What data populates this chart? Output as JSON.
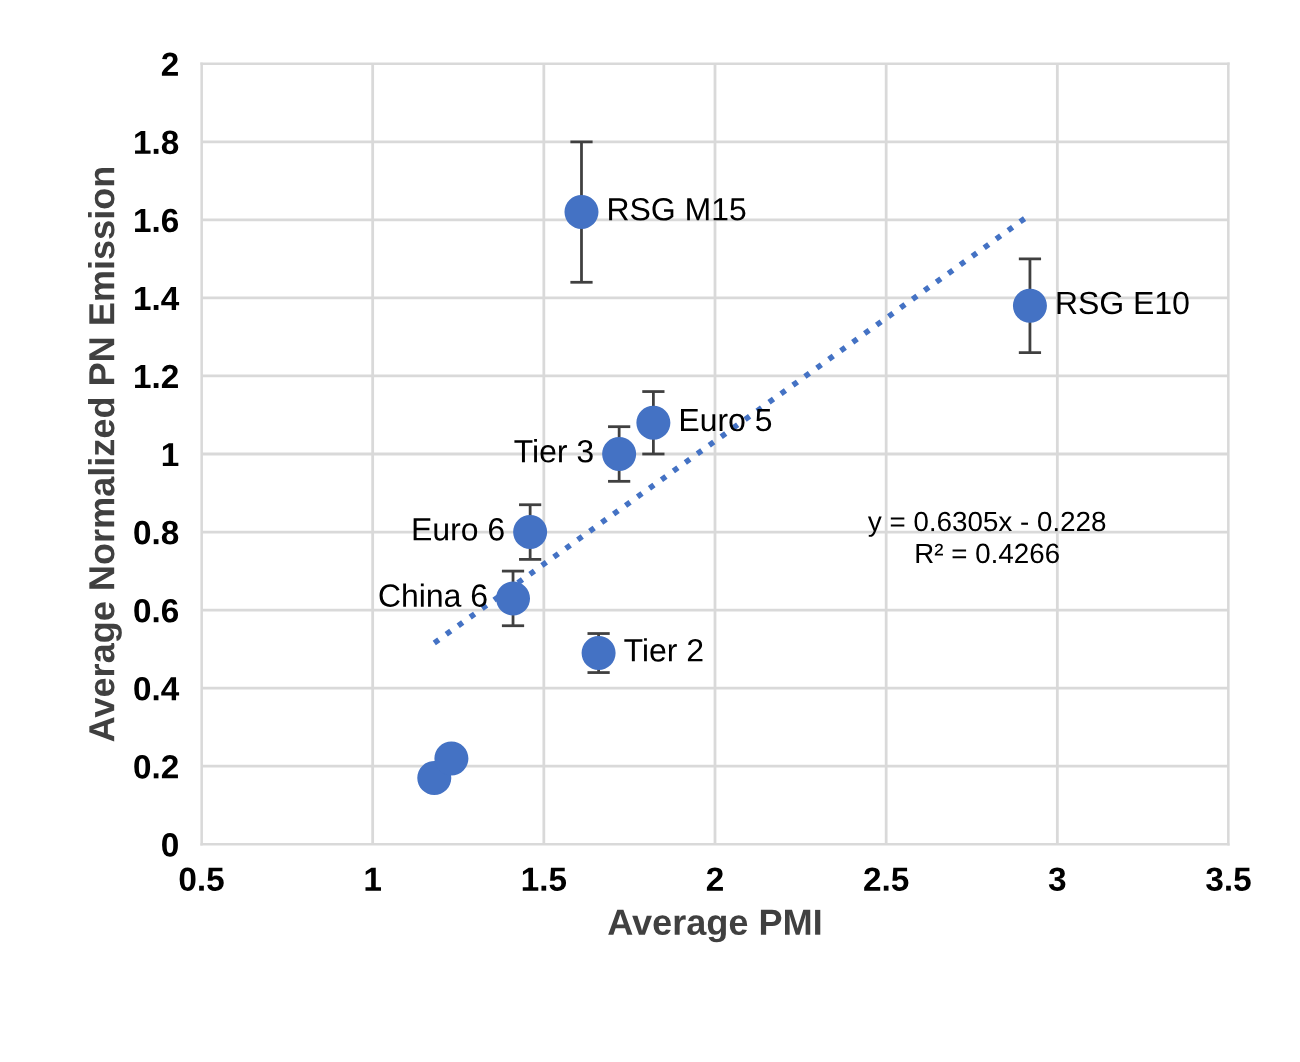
{
  "chart_data": {
    "type": "scatter",
    "xlabel": "Average PMI",
    "ylabel": "Average Normalized PN Emission",
    "xlim": [
      0.5,
      3.5
    ],
    "xticks": [
      0.5,
      1,
      1.5,
      2,
      2.5,
      3,
      3.5
    ],
    "ylim": [
      0,
      2
    ],
    "yticks": [
      0,
      0.2,
      0.4,
      0.6,
      0.8,
      1,
      1.2,
      1.4,
      1.6,
      1.8,
      2
    ],
    "grid": true,
    "series": [
      {
        "color": "#4472c4",
        "marker": "circle",
        "x": [
          1.18,
          1.23,
          1.41,
          1.46,
          1.66,
          1.72,
          1.82,
          1.61,
          2.92
        ],
        "values": [
          0.17,
          0.22,
          0.63,
          0.8,
          0.49,
          1.0,
          1.08,
          1.62,
          1.38
        ],
        "errors": [
          null,
          null,
          0.07,
          0.07,
          0.05,
          0.07,
          0.08,
          0.18,
          0.12
        ]
      },
      {
        "type": "line",
        "color": "#4472c4",
        "line_style": "dotted",
        "x": [
          1.18,
          2.92
        ],
        "values": [
          0.516,
          1.613
        ]
      }
    ],
    "annotations": [
      {
        "text": "China 6",
        "x": 1.41,
        "y": 0.63
      },
      {
        "text": "Euro 6",
        "x": 1.46,
        "y": 0.8
      },
      {
        "text": "Tier 2",
        "x": 1.66,
        "y": 0.49
      },
      {
        "text": "Tier 3",
        "x": 1.72,
        "y": 1.0
      },
      {
        "text": "Euro 5",
        "x": 1.82,
        "y": 1.08
      },
      {
        "text": "RSG M15",
        "x": 1.61,
        "y": 1.62
      },
      {
        "text": "RSG E10",
        "x": 2.92,
        "y": 1.38
      },
      "y = 0.6305x - 0.228\nR² = 0.4266"
    ]
  }
}
